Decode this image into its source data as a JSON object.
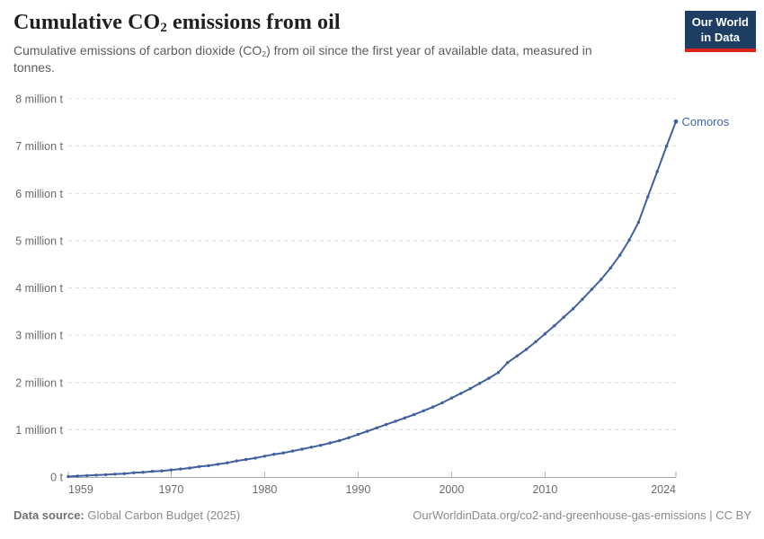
{
  "header": {
    "title_pre": "Cumulative CO",
    "title_sub": "2",
    "title_post": " emissions from oil",
    "subtitle_pre": "Cumulative emissions of carbon dioxide (CO",
    "subtitle_sub": "2",
    "subtitle_post": ") from oil since the first year of available data, measured in tonnes."
  },
  "logo": {
    "line1": "Our World",
    "line2": "in Data",
    "bg_color": "#1d3d63",
    "bar_color": "#d8261e"
  },
  "chart_data": {
    "type": "line",
    "title": "Cumulative CO₂ emissions from oil",
    "xlabel": "",
    "ylabel": "",
    "values_unit": "million tonnes",
    "xlim": [
      1959,
      2024
    ],
    "ylim": [
      0,
      8
    ],
    "grid": "horizontal-dashed",
    "legend_position": "end-of-line label",
    "x_ticks": [
      1959,
      1970,
      1980,
      1990,
      2000,
      2010,
      2024
    ],
    "y_ticks": [
      {
        "value": 0,
        "label": "0 t"
      },
      {
        "value": 1,
        "label": "1 million t"
      },
      {
        "value": 2,
        "label": "2 million t"
      },
      {
        "value": 3,
        "label": "3 million t"
      },
      {
        "value": 4,
        "label": "4 million t"
      },
      {
        "value": 5,
        "label": "5 million t"
      },
      {
        "value": 6,
        "label": "6 million t"
      },
      {
        "value": 7,
        "label": "7 million t"
      },
      {
        "value": 8,
        "label": "8 million t"
      }
    ],
    "x": [
      1959,
      1960,
      1961,
      1962,
      1963,
      1964,
      1965,
      1966,
      1967,
      1968,
      1969,
      1970,
      1971,
      1972,
      1973,
      1974,
      1975,
      1976,
      1977,
      1978,
      1979,
      1980,
      1981,
      1982,
      1983,
      1984,
      1985,
      1986,
      1987,
      1988,
      1989,
      1990,
      1991,
      1992,
      1993,
      1994,
      1995,
      1996,
      1997,
      1998,
      1999,
      2000,
      2001,
      2002,
      2003,
      2004,
      2005,
      2006,
      2007,
      2008,
      2009,
      2010,
      2011,
      2012,
      2013,
      2014,
      2015,
      2016,
      2017,
      2018,
      2019,
      2020,
      2021,
      2022,
      2023,
      2024
    ],
    "series": [
      {
        "name": "Comoros",
        "color": "#4060A0",
        "values": [
          0.01,
          0.02,
          0.03,
          0.04,
          0.05,
          0.06,
          0.07,
          0.09,
          0.1,
          0.12,
          0.13,
          0.15,
          0.17,
          0.19,
          0.22,
          0.24,
          0.27,
          0.3,
          0.34,
          0.37,
          0.4,
          0.44,
          0.48,
          0.51,
          0.55,
          0.59,
          0.63,
          0.67,
          0.72,
          0.77,
          0.83,
          0.9,
          0.97,
          1.04,
          1.11,
          1.18,
          1.25,
          1.32,
          1.4,
          1.48,
          1.57,
          1.67,
          1.77,
          1.87,
          1.98,
          2.09,
          2.21,
          2.42,
          2.56,
          2.7,
          2.86,
          3.03,
          3.2,
          3.38,
          3.56,
          3.76,
          3.97,
          4.18,
          4.42,
          4.69,
          5.01,
          5.39,
          5.93,
          6.46,
          7.0,
          7.52
        ]
      }
    ]
  },
  "colors": {
    "gridline": "#dcdcdc",
    "axis_line": "#a8a8a8",
    "axis_text": "#6b6b6b",
    "series_label": "#4466aa"
  },
  "footer": {
    "source_label": "Data source:",
    "source_value": " Global Carbon Budget (2025)",
    "link": "OurWorldinData.org/co2-and-greenhouse-gas-emissions | CC BY"
  }
}
